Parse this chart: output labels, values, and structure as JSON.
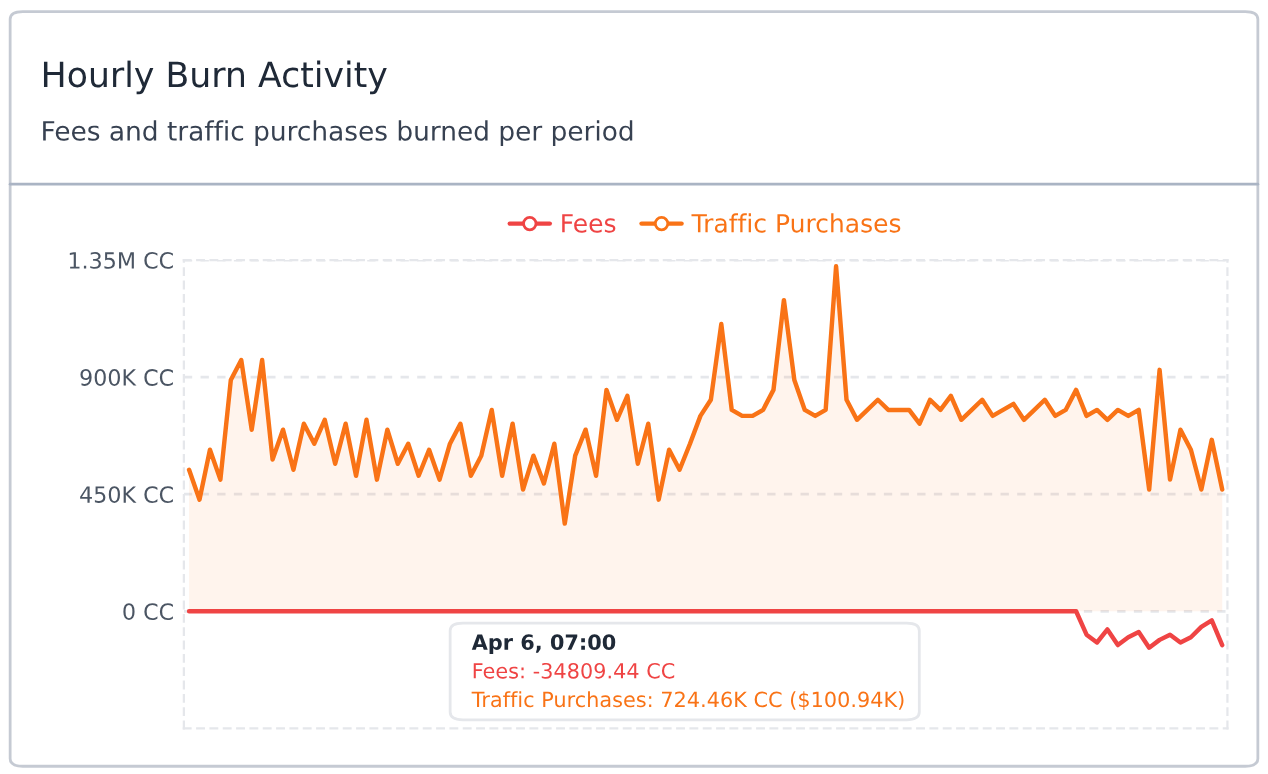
{
  "chart_data": {
    "type": "line",
    "title": "Hourly Burn Activity",
    "subtitle": "Fees and traffic purchases burned per period",
    "categories": [
      null,
      null,
      null,
      null,
      null,
      null,
      null,
      null,
      null,
      null,
      null,
      null,
      null,
      null,
      null,
      null,
      null,
      null,
      null,
      null,
      null,
      null,
      null,
      null,
      null,
      null,
      null,
      null,
      null,
      null,
      null,
      null,
      null,
      null,
      null,
      null,
      null,
      null,
      null,
      null,
      null,
      null,
      null,
      null,
      null,
      null,
      null,
      null,
      null,
      null,
      null,
      null,
      null,
      null,
      null,
      null,
      null,
      null,
      null,
      null,
      null,
      null,
      null,
      null,
      null,
      null,
      null,
      null,
      null,
      null,
      null,
      null,
      null,
      null,
      null,
      null,
      null,
      null,
      null,
      null,
      null,
      null,
      null,
      null,
      null,
      null,
      null,
      null,
      null,
      null,
      null,
      null,
      null,
      null,
      null,
      null,
      null,
      null,
      null,
      null
    ],
    "series": [
      {
        "name": "Fees",
        "color": "#ef4444",
        "values": [
          0,
          0,
          0,
          0,
          0,
          0,
          0,
          0,
          0,
          0,
          0,
          0,
          0,
          0,
          0,
          0,
          0,
          0,
          0,
          0,
          0,
          0,
          0,
          0,
          0,
          0,
          0,
          0,
          0,
          0,
          0,
          0,
          0,
          0,
          0,
          0,
          0,
          0,
          0,
          0,
          0,
          0,
          0,
          0,
          0,
          0,
          0,
          0,
          0,
          0,
          0,
          0,
          0,
          0,
          0,
          0,
          0,
          0,
          0,
          0,
          0,
          0,
          0,
          0,
          0,
          0,
          0,
          0,
          0,
          0,
          0,
          0,
          0,
          0,
          0,
          0,
          0,
          0,
          0,
          0,
          0,
          0,
          0,
          0,
          0,
          0,
          -90000,
          -120000,
          -70000,
          -130000,
          -100000,
          -80000,
          -140000,
          -110000,
          -90000,
          -120000,
          -100000,
          -60000,
          -35000,
          -130000
        ]
      },
      {
        "name": "Traffic Purchases",
        "color": "#f97316",
        "type": "area",
        "values": [
          544000,
          429000,
          621000,
          506000,
          889000,
          966000,
          698000,
          966000,
          583000,
          698000,
          544000,
          721000,
          644000,
          736000,
          567000,
          721000,
          521000,
          736000,
          506000,
          698000,
          567000,
          644000,
          521000,
          621000,
          506000,
          644000,
          721000,
          521000,
          598000,
          774000,
          521000,
          721000,
          468000,
          598000,
          491000,
          644000,
          337000,
          598000,
          698000,
          521000,
          851000,
          736000,
          828000,
          567000,
          721000,
          429000,
          621000,
          544000,
          644000,
          751000,
          813000,
          1104000,
          774000,
          751000,
          751000,
          774000,
          851000,
          1196000,
          889000,
          774000,
          751000,
          774000,
          1326000,
          813000,
          736000,
          774000,
          813000,
          774000,
          774000,
          774000,
          721000,
          813000,
          774000,
          828000,
          736000,
          774000,
          813000,
          751000,
          774000,
          797000,
          736000,
          774000,
          813000,
          751000,
          774000,
          851000,
          751000,
          774000,
          736000,
          774000,
          751000,
          774000,
          468000,
          928000,
          506000,
          698000,
          621000,
          468000,
          659000,
          468000
        ]
      }
    ],
    "ylim": [
      -450000,
      1350000
    ],
    "yticks": [
      {
        "value": 0,
        "label": "0 CC"
      },
      {
        "value": 450000,
        "label": "450K CC"
      },
      {
        "value": 900000,
        "label": "900K CC"
      },
      {
        "value": 1350000,
        "label": "1.35M CC"
      }
    ],
    "grid": "y",
    "legend": "top",
    "marker": "none",
    "line_style": "solid",
    "annotations": [
      "Apr 6, 07:00",
      "Fees: -34809.44 CC",
      "Traffic Purchases: 724.46K CC ($100.94K)"
    ]
  }
}
